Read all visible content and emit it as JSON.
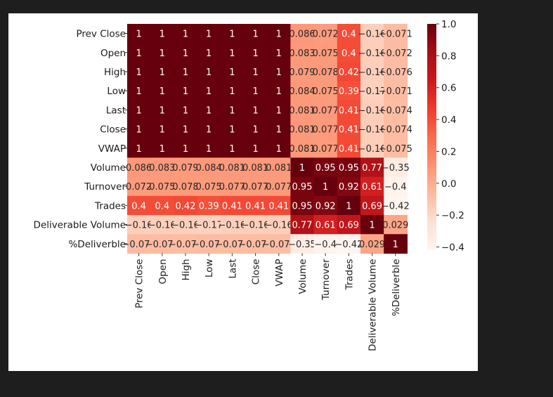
{
  "chart_data": {
    "type": "heatmap",
    "title": "",
    "xlabel": "",
    "ylabel": "",
    "colormap": "Reds",
    "vmin": -0.42,
    "vmax": 1.0,
    "row_labels": [
      "Prev Close",
      "Open",
      "High",
      "Low",
      "Last",
      "Close",
      "VWAP",
      "Volume",
      "Turnover",
      "Trades",
      "Deliverable Volume",
      "%Deliverble"
    ],
    "col_labels": [
      "Prev Close",
      "Open",
      "High",
      "Low",
      "Last",
      "Close",
      "VWAP",
      "Volume",
      "Turnover",
      "Trades",
      "Deliverable Volume",
      "%Deliverble"
    ],
    "values": [
      [
        1,
        1,
        1,
        1,
        1,
        1,
        1,
        0.086,
        0.072,
        0.4,
        -0.16,
        -0.071
      ],
      [
        1,
        1,
        1,
        1,
        1,
        1,
        1,
        0.083,
        0.075,
        0.4,
        -0.16,
        -0.072
      ],
      [
        1,
        1,
        1,
        1,
        1,
        1,
        1,
        0.079,
        0.078,
        0.42,
        -0.16,
        -0.076
      ],
      [
        1,
        1,
        1,
        1,
        1,
        1,
        1,
        0.084,
        0.075,
        0.39,
        -0.17,
        -0.071
      ],
      [
        1,
        1,
        1,
        1,
        1,
        1,
        1,
        0.081,
        0.077,
        0.41,
        -0.16,
        -0.074
      ],
      [
        1,
        1,
        1,
        1,
        1,
        1,
        1,
        0.081,
        0.077,
        0.41,
        -0.16,
        -0.074
      ],
      [
        1,
        1,
        1,
        1,
        1,
        1,
        1,
        0.081,
        0.077,
        0.41,
        -0.16,
        -0.075
      ],
      [
        0.086,
        0.083,
        0.079,
        0.084,
        0.081,
        0.081,
        0.081,
        1,
        0.95,
        0.95,
        0.77,
        -0.35
      ],
      [
        0.072,
        0.075,
        0.078,
        0.075,
        0.077,
        0.077,
        0.077,
        0.95,
        1,
        0.92,
        0.61,
        -0.4
      ],
      [
        0.4,
        0.4,
        0.42,
        0.39,
        0.41,
        0.41,
        0.41,
        0.95,
        0.92,
        1,
        0.69,
        -0.42
      ],
      [
        -0.16,
        -0.16,
        -0.16,
        -0.17,
        -0.16,
        -0.16,
        -0.16,
        0.77,
        0.61,
        0.69,
        1,
        0.029
      ],
      [
        -0.071,
        -0.072,
        -0.076,
        -0.071,
        -0.074,
        -0.074,
        -0.075,
        -0.35,
        -0.4,
        -0.42,
        0.029,
        1
      ]
    ],
    "colorbar_ticks": [
      "1.0",
      "0.8",
      "0.6",
      "0.4",
      "0.2",
      "0.0",
      "−0.2",
      "−0.4"
    ],
    "colorbar_tick_values": [
      1.0,
      0.8,
      0.6,
      0.4,
      0.2,
      0.0,
      -0.2,
      -0.4
    ]
  }
}
